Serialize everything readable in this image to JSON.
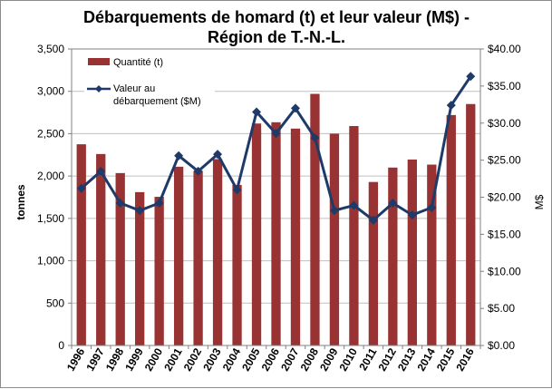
{
  "chart_data": {
    "type": "bar",
    "title_line1": "Débarquements de homard (t) et leur valeur (M$) -",
    "title_line2": "Région de T.-N.-L.",
    "ylabel": "tonnes",
    "y2label": "M$",
    "ylim": [
      0,
      3500
    ],
    "y2lim": [
      0,
      40
    ],
    "yticks": [
      "0",
      "500",
      "1,000",
      "1,500",
      "2,000",
      "2,500",
      "3,000",
      "3,500"
    ],
    "y2ticks": [
      "$0.00",
      "$5.00",
      "$10.00",
      "$15.00",
      "$20.00",
      "$25.00",
      "$30.00",
      "$35.00",
      "$40.00"
    ],
    "categories": [
      "1996",
      "1997",
      "1998",
      "1999",
      "2000",
      "2001",
      "2002",
      "2003",
      "2004",
      "2005",
      "2006",
      "2007",
      "2008",
      "2009",
      "2010",
      "2011",
      "2012",
      "2013",
      "2014",
      "2015",
      "2016"
    ],
    "series": [
      {
        "name": "Quantité (t)",
        "kind": "bar",
        "axis": "left",
        "color": "#993333",
        "values": [
          2375,
          2260,
          2035,
          1810,
          1755,
          2110,
          2060,
          2200,
          1895,
          2620,
          2635,
          2560,
          2970,
          2500,
          2590,
          1930,
          2100,
          2195,
          2135,
          2720,
          2850
        ]
      },
      {
        "name_line1": "Valeur au",
        "name_line2": "débarquement ($M)",
        "kind": "line",
        "axis": "right",
        "color": "#1f3a68",
        "values": [
          21.2,
          23.5,
          19.2,
          18.2,
          19.2,
          25.6,
          23.5,
          25.8,
          21.0,
          31.5,
          28.6,
          32.0,
          28.0,
          18.2,
          18.9,
          16.9,
          19.2,
          17.6,
          18.6,
          32.4,
          36.3
        ]
      }
    ],
    "legend_position": "top-left",
    "grid": true
  }
}
